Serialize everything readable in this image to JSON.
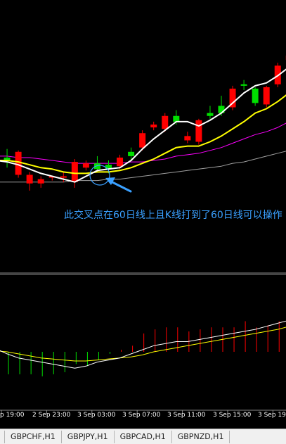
{
  "annotation": "此交叉点在60日线上且K线打到了60日线可以操作",
  "x_labels": [
    "p 19:00",
    "2 Sep 23:00",
    "3 Sep 03:00",
    "3 Sep 07:00",
    "3 Sep 11:00",
    "3 Sep 15:00",
    "3 Sep 19:"
  ],
  "tabs": [
    "GBPCHF,H1",
    "GBPJPY,H1",
    "GBPCAD,H1",
    "GBPNZD,H1"
  ],
  "colors": {
    "background": "#000000",
    "bull_candle": "#00e000",
    "bear_candle": "#ff0000",
    "ma_fast": "#ffffff",
    "ma_mid": "#ffff00",
    "ma_slow": "#ff00ff",
    "ma_60": "#a0a0a0",
    "annotation": "#3aa0ff"
  },
  "chart_data": {
    "type": "candlestick",
    "price_panel": {
      "candles": [
        {
          "open": 0.16,
          "close": 0.18,
          "high": 0.22,
          "low": 0.1
        },
        {
          "open": 0.17,
          "close": 0.19,
          "high": 0.25,
          "low": 0.12
        },
        {
          "open": 0.23,
          "close": 0.07,
          "high": 0.24,
          "low": 0.05
        },
        {
          "open": 0.07,
          "close": 0.01,
          "high": 0.09,
          "low": -0.04
        },
        {
          "open": 0.04,
          "close": 0.01,
          "high": 0.06,
          "low": -0.02
        },
        {
          "open": 0.06,
          "close": 0.05,
          "high": 0.06,
          "low": 0.03
        },
        {
          "open": 0.06,
          "close": 0.05,
          "high": 0.09,
          "low": 0.02
        },
        {
          "open": 0.16,
          "close": 0.02,
          "high": 0.18,
          "low": -0.02
        },
        {
          "open": 0.15,
          "close": 0.12,
          "high": 0.17,
          "low": 0.1
        },
        {
          "open": 0.11,
          "close": 0.15,
          "high": 0.2,
          "low": 0.09
        },
        {
          "open": 0.11,
          "close": 0.14,
          "high": 0.17,
          "low": 0.08
        },
        {
          "open": 0.19,
          "close": 0.13,
          "high": 0.21,
          "low": 0.11
        },
        {
          "open": 0.2,
          "close": 0.23,
          "high": 0.26,
          "low": 0.17
        },
        {
          "open": 0.36,
          "close": 0.26,
          "high": 0.38,
          "low": 0.24
        },
        {
          "open": 0.42,
          "close": 0.4,
          "high": 0.44,
          "low": 0.38
        },
        {
          "open": 0.48,
          "close": 0.39,
          "high": 0.5,
          "low": 0.37
        },
        {
          "open": 0.44,
          "close": 0.48,
          "high": 0.52,
          "low": 0.42
        },
        {
          "open": 0.34,
          "close": 0.31,
          "high": 0.37,
          "low": 0.29
        },
        {
          "open": 0.45,
          "close": 0.3,
          "high": 0.46,
          "low": 0.28
        },
        {
          "open": 0.48,
          "close": 0.5,
          "high": 0.55,
          "low": 0.46
        },
        {
          "open": 0.5,
          "close": 0.55,
          "high": 0.62,
          "low": 0.48
        },
        {
          "open": 0.67,
          "close": 0.54,
          "high": 0.69,
          "low": 0.52
        },
        {
          "open": 0.69,
          "close": 0.7,
          "high": 0.73,
          "low": 0.66
        },
        {
          "open": 0.57,
          "close": 0.67,
          "high": 0.68,
          "low": 0.55
        },
        {
          "open": 0.68,
          "close": 0.56,
          "high": 0.69,
          "low": 0.54
        },
        {
          "open": 0.83,
          "close": 0.7,
          "high": 0.85,
          "low": 0.68
        },
        {
          "open": 0.9,
          "close": 0.87,
          "high": 0.92,
          "low": 0.85
        },
        {
          "open": 0.94,
          "close": 0.97,
          "high": 1.02,
          "low": 0.92
        },
        {
          "open": 0.97,
          "close": 0.96,
          "high": 1.1,
          "low": 0.94
        },
        {
          "open": 0.96,
          "close": 0.94,
          "high": 1.05,
          "low": 0.92
        },
        {
          "open": 0.98,
          "close": 0.97,
          "high": 1.02,
          "low": 0.95
        }
      ],
      "ma_fast": [
        0.17,
        0.16,
        0.14,
        0.11,
        0.08,
        0.06,
        0.04,
        0.02,
        0.06,
        0.1,
        0.11,
        0.12,
        0.17,
        0.25,
        0.32,
        0.38,
        0.44,
        0.44,
        0.41,
        0.45,
        0.5,
        0.57,
        0.64,
        0.69,
        0.71,
        0.76,
        0.82,
        0.88,
        0.92,
        0.96,
        0.98
      ],
      "ma_mid": [
        0.17,
        0.17,
        0.16,
        0.14,
        0.12,
        0.11,
        0.09,
        0.08,
        0.08,
        0.09,
        0.09,
        0.1,
        0.12,
        0.15,
        0.18,
        0.22,
        0.26,
        0.27,
        0.27,
        0.3,
        0.34,
        0.39,
        0.44,
        0.5,
        0.53,
        0.58,
        0.64,
        0.71,
        0.76,
        0.81,
        0.86
      ],
      "ma_slow": [
        0.2,
        0.2,
        0.19,
        0.19,
        0.18,
        0.17,
        0.16,
        0.15,
        0.15,
        0.15,
        0.15,
        0.15,
        0.16,
        0.16,
        0.17,
        0.18,
        0.2,
        0.21,
        0.22,
        0.24,
        0.26,
        0.29,
        0.32,
        0.35,
        0.37,
        0.4,
        0.44,
        0.48,
        0.52,
        0.56,
        0.6
      ],
      "ma_60": [
        0.02,
        0.02,
        0.02,
        0.02,
        0.02,
        0.02,
        0.02,
        0.03,
        0.03,
        0.03,
        0.04,
        0.04,
        0.05,
        0.06,
        0.07,
        0.08,
        0.09,
        0.1,
        0.11,
        0.12,
        0.13,
        0.15,
        0.16,
        0.18,
        0.2,
        0.22,
        0.24,
        0.26,
        0.28,
        0.31,
        0.33
      ]
    },
    "indicator_panel": {
      "histogram": [
        -0.7,
        -1.1,
        -1.1,
        -1.1,
        -1.2,
        -1.1,
        -1.0,
        -0.6,
        -0.7,
        -0.4,
        -0.1,
        0.1,
        0.3,
        0.9,
        1.1,
        1.2,
        1.2,
        1.0,
        1.1,
        1.2,
        1.2,
        1.2,
        1.5,
        1.2,
        1.3,
        1.5,
        1.4,
        1.6,
        1.7,
        1.6,
        1.4
      ],
      "line_white": [
        0.15,
        -0.1,
        -0.3,
        -0.4,
        -0.5,
        -0.6,
        -0.7,
        -0.8,
        -0.7,
        -0.5,
        -0.4,
        -0.3,
        -0.1,
        0.1,
        0.3,
        0.4,
        0.5,
        0.5,
        0.6,
        0.7,
        0.8,
        0.9,
        1.0,
        1.1,
        1.25,
        1.4,
        1.55,
        1.75,
        1.9,
        2.0,
        2.05
      ],
      "line_yellow": [
        0.05,
        0.0,
        -0.1,
        -0.2,
        -0.3,
        -0.35,
        -0.4,
        -0.45,
        -0.45,
        -0.4,
        -0.35,
        -0.3,
        -0.25,
        -0.15,
        0.0,
        0.1,
        0.2,
        0.3,
        0.4,
        0.5,
        0.6,
        0.7,
        0.8,
        0.9,
        1.0,
        1.1,
        1.25,
        1.4,
        1.55,
        1.65,
        1.75
      ]
    }
  }
}
